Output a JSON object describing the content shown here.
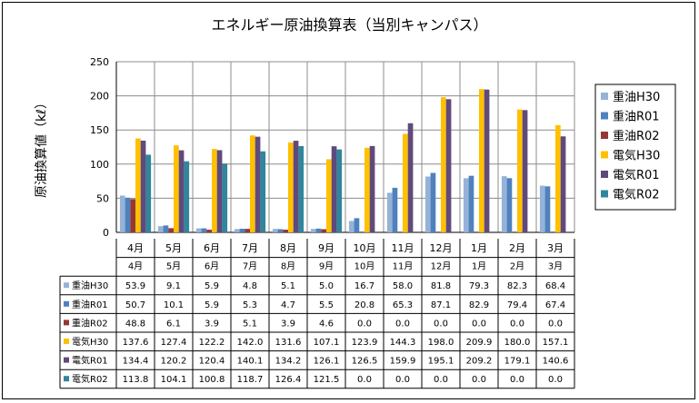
{
  "chart_data": {
    "type": "bar",
    "title": "エネルギー原油換算表（当別キャンパス）",
    "ylabel": "原油換算値（kℓ）",
    "xlabel": "",
    "ylim": [
      0,
      250
    ],
    "yticks": [
      0,
      50,
      100,
      150,
      200,
      250
    ],
    "grid": true,
    "legend_position": "right",
    "categories": [
      "4月",
      "5月",
      "6月",
      "7月",
      "8月",
      "9月",
      "10月",
      "11月",
      "12月",
      "1月",
      "2月",
      "3月"
    ],
    "series": [
      {
        "name": "重油H30",
        "color": "#95b3d7",
        "values": [
          53.9,
          9.1,
          5.9,
          4.8,
          5.1,
          5.0,
          16.7,
          58.0,
          81.8,
          79.3,
          82.3,
          68.4
        ]
      },
      {
        "name": "重油R01",
        "color": "#4f81bd",
        "values": [
          50.7,
          10.1,
          5.9,
          5.3,
          4.7,
          5.5,
          20.8,
          65.3,
          87.1,
          82.9,
          79.4,
          67.4
        ]
      },
      {
        "name": "重油R02",
        "color": "#953735",
        "values": [
          48.8,
          6.1,
          3.9,
          5.1,
          3.9,
          4.6,
          0.0,
          0.0,
          0.0,
          0.0,
          0.0,
          0.0
        ]
      },
      {
        "name": "電気H30",
        "color": "#ffc000",
        "values": [
          137.6,
          127.4,
          122.2,
          142.0,
          131.6,
          107.1,
          123.9,
          144.3,
          198.0,
          209.9,
          180.0,
          157.1
        ]
      },
      {
        "name": "電気R01",
        "color": "#604a7b",
        "values": [
          134.4,
          120.2,
          120.4,
          140.1,
          134.2,
          126.1,
          126.5,
          159.9,
          195.1,
          209.2,
          179.1,
          140.6
        ]
      },
      {
        "name": "電気R02",
        "color": "#31859c",
        "values": [
          113.8,
          104.1,
          100.8,
          118.7,
          126.4,
          121.5,
          0.0,
          0.0,
          0.0,
          0.0,
          0.0,
          0.0
        ]
      }
    ]
  }
}
